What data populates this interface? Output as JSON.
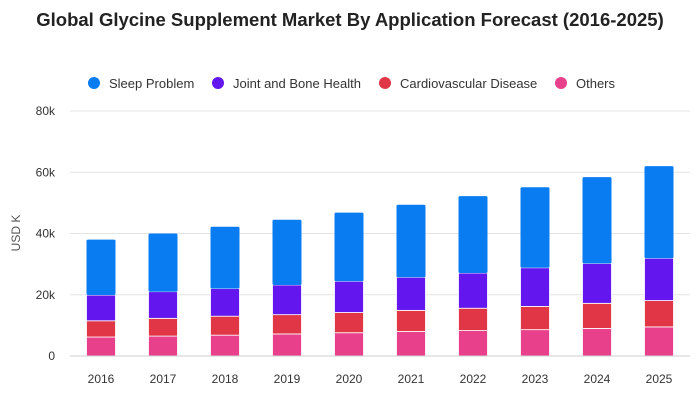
{
  "chart_data": {
    "type": "bar",
    "stacked": true,
    "title": "Global Glycine Supplement Market By Application Forecast (2016-2025)",
    "ylabel": "USD K",
    "xlabel": "",
    "ylim": [
      0,
      80000
    ],
    "yticks": [
      0,
      20000,
      40000,
      60000,
      80000
    ],
    "ytick_labels": [
      "0",
      "20k",
      "40k",
      "60k",
      "80k"
    ],
    "categories": [
      "2016",
      "2017",
      "2018",
      "2019",
      "2020",
      "2021",
      "2022",
      "2023",
      "2024",
      "2025"
    ],
    "legend_position": "top",
    "grid": "horizontal",
    "series": [
      {
        "name": "Others",
        "color": "#e8408a",
        "values": [
          6200,
          6500,
          6800,
          7200,
          7600,
          8000,
          8300,
          8600,
          9000,
          9500
        ]
      },
      {
        "name": "Cardiovascular Disease",
        "color": "#e03646",
        "values": [
          5300,
          5800,
          6200,
          6300,
          6600,
          6900,
          7300,
          7600,
          8200,
          8600
        ]
      },
      {
        "name": "Joint and Bone Health",
        "color": "#6316ee",
        "values": [
          8400,
          8700,
          9000,
          9700,
          10200,
          10800,
          11500,
          12600,
          13000,
          13800
        ]
      },
      {
        "name": "Sleep Problem",
        "color": "#0a7cf2",
        "values": [
          18100,
          19000,
          20200,
          21300,
          22400,
          23700,
          25100,
          26300,
          28200,
          30100
        ]
      }
    ],
    "legend_order": [
      "Sleep Problem",
      "Joint and Bone Health",
      "Cardiovascular Disease",
      "Others"
    ]
  }
}
